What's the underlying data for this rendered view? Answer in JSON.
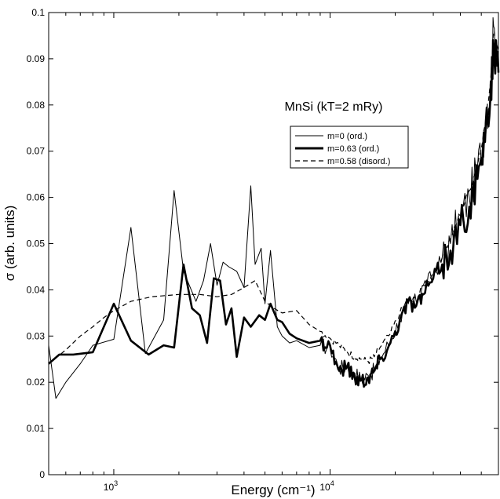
{
  "chart_data": {
    "type": "line",
    "title": "",
    "xlabel": "Energy (cm⁻¹)",
    "ylabel": "σ (arb. units)",
    "xscale": "log",
    "xlim": [
      500,
      60000
    ],
    "ylim": [
      0,
      0.1
    ],
    "x_ticks": [
      {
        "value": 1000,
        "base": "10",
        "exp": "3"
      },
      {
        "value": 10000,
        "base": "10",
        "exp": "4"
      }
    ],
    "y_ticks": [
      {
        "value": 0,
        "label": "0"
      },
      {
        "value": 0.01,
        "label": "0.01"
      },
      {
        "value": 0.02,
        "label": "0.02"
      },
      {
        "value": 0.03,
        "label": "0.03"
      },
      {
        "value": 0.04,
        "label": "0.04"
      },
      {
        "value": 0.05,
        "label": "0.05"
      },
      {
        "value": 0.06,
        "label": "0.06"
      },
      {
        "value": 0.07,
        "label": "0.07"
      },
      {
        "value": 0.08,
        "label": "0.08"
      },
      {
        "value": 0.09,
        "label": "0.09"
      },
      {
        "value": 0.1,
        "label": "0.1"
      }
    ],
    "grid": false,
    "legend_position": "center-right",
    "annotation": "MnSi (kT=2 mRy)",
    "series": [
      {
        "name": "m=0 (ord.)",
        "style": "thin-solid",
        "color": "#000000",
        "x": [
          500,
          540,
          600,
          700,
          800,
          1000,
          1200,
          1400,
          1700,
          1900,
          2100,
          2400,
          2600,
          2800,
          3000,
          3200,
          3400,
          3700,
          4000,
          4300,
          4500,
          4800,
          5000,
          5300,
          5700,
          6000,
          6500,
          7000,
          8000,
          9000,
          10000,
          11000,
          12000,
          13000,
          14000,
          15000,
          16000,
          17000,
          19000,
          21000,
          23000,
          25000,
          27000,
          30000,
          33000,
          36000,
          40000,
          44000,
          48000,
          52000,
          55000,
          57000,
          60000
        ],
        "y": [
          0.028,
          0.0165,
          0.02,
          0.024,
          0.028,
          0.0293,
          0.0535,
          0.0262,
          0.0335,
          0.0615,
          0.044,
          0.0375,
          0.042,
          0.05,
          0.041,
          0.046,
          0.045,
          0.044,
          0.0405,
          0.0625,
          0.0455,
          0.049,
          0.037,
          0.0485,
          0.032,
          0.03,
          0.0285,
          0.029,
          0.0275,
          0.028,
          0.0275,
          0.023,
          0.0235,
          0.022,
          0.0205,
          0.0215,
          0.0225,
          0.025,
          0.029,
          0.0335,
          0.037,
          0.0375,
          0.041,
          0.043,
          0.047,
          0.05,
          0.056,
          0.06,
          0.0665,
          0.0745,
          0.084,
          0.097,
          0.09
        ]
      },
      {
        "name": "m=0.63 (ord.)",
        "style": "thick-solid",
        "color": "#000000",
        "x": [
          500,
          560,
          650,
          800,
          1000,
          1200,
          1450,
          1700,
          1900,
          2100,
          2300,
          2500,
          2700,
          2900,
          3100,
          3300,
          3500,
          3700,
          4000,
          4300,
          4700,
          5000,
          5300,
          5700,
          6000,
          6500,
          7000,
          8000,
          9000,
          10000,
          11000,
          12000,
          13000,
          14000,
          15000,
          16000,
          17000,
          19000,
          21000,
          23000,
          25000,
          27000,
          30000,
          33000,
          36000,
          40000,
          44000,
          48000,
          52000,
          55000,
          57000,
          60000
        ],
        "y": [
          0.024,
          0.026,
          0.026,
          0.0265,
          0.037,
          0.029,
          0.026,
          0.028,
          0.0275,
          0.0455,
          0.036,
          0.0345,
          0.0285,
          0.0425,
          0.042,
          0.0325,
          0.036,
          0.0255,
          0.034,
          0.032,
          0.0345,
          0.0335,
          0.037,
          0.0335,
          0.033,
          0.0305,
          0.0295,
          0.0285,
          0.029,
          0.028,
          0.0225,
          0.0235,
          0.021,
          0.0205,
          0.021,
          0.0225,
          0.025,
          0.0285,
          0.0335,
          0.0375,
          0.0365,
          0.039,
          0.0425,
          0.0455,
          0.0485,
          0.054,
          0.058,
          0.064,
          0.072,
          0.081,
          0.093,
          0.087
        ]
      },
      {
        "name": "m=0.58 (disord.)",
        "style": "dashed",
        "color": "#000000",
        "x": [
          500,
          600,
          700,
          800,
          900,
          1000,
          1200,
          1500,
          2000,
          2500,
          3000,
          3500,
          4000,
          4500,
          5000,
          5500,
          6000,
          7000,
          8000,
          9000,
          10000,
          11000,
          12000,
          13000,
          14000,
          15000,
          16000,
          17000,
          19000,
          21000,
          23000,
          25000,
          27000,
          30000,
          33000,
          36000,
          40000,
          44000,
          48000,
          52000,
          55000,
          57000,
          60000
        ],
        "y": [
          0.024,
          0.027,
          0.03,
          0.032,
          0.034,
          0.0355,
          0.0375,
          0.0385,
          0.039,
          0.039,
          0.0385,
          0.039,
          0.0405,
          0.042,
          0.0375,
          0.036,
          0.035,
          0.0355,
          0.0325,
          0.031,
          0.0295,
          0.028,
          0.0265,
          0.0255,
          0.025,
          0.0245,
          0.0255,
          0.0275,
          0.0305,
          0.035,
          0.0375,
          0.038,
          0.041,
          0.0435,
          0.047,
          0.051,
          0.0565,
          0.0615,
          0.067,
          0.0755,
          0.0845,
          0.096,
          0.092
        ]
      }
    ]
  }
}
